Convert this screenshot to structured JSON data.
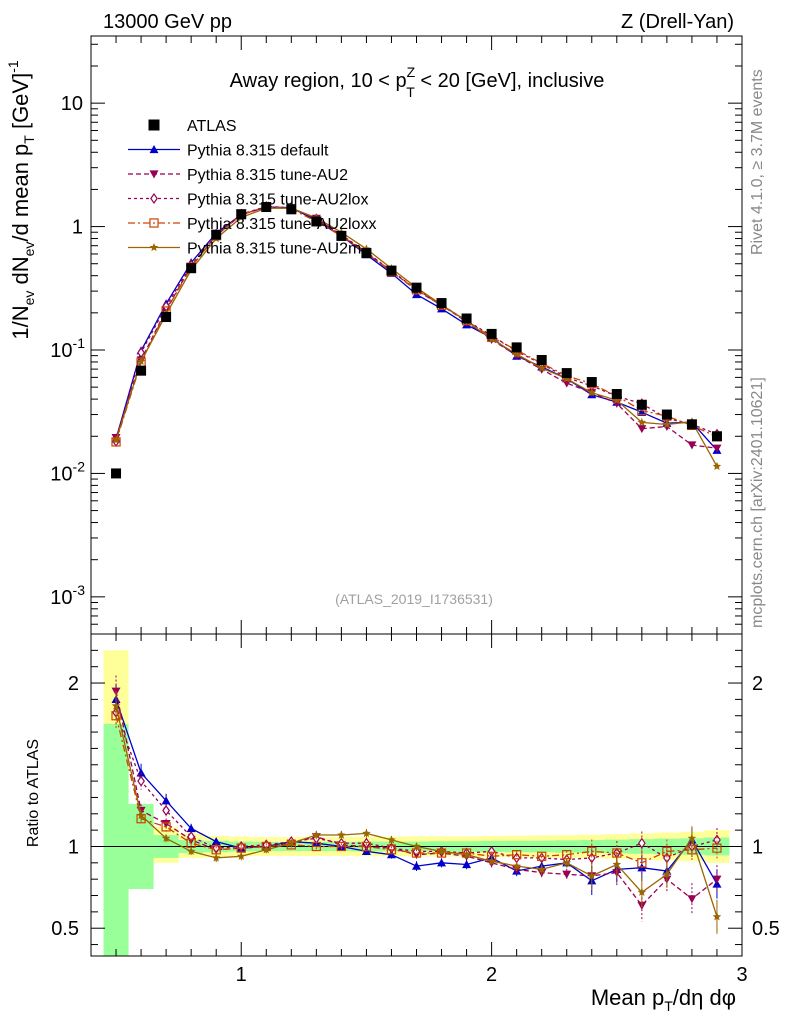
{
  "header": {
    "energy_label": "13000 GeV pp",
    "process_label": "Z (Drell-Yan)"
  },
  "side_labels": {
    "rivet": "Rivet 4.1.0, ≥ 3.7M events",
    "mcplots": "mcplots.cern.ch [arXiv:2401.10621]"
  },
  "chart_data": {
    "type": "line",
    "title_pre": "Away region, 10 < p",
    "title_sup": "Z",
    "title_sub": "T",
    "title_post": " < 20 [GeV], inclusive",
    "watermark": "(ATLAS_2019_I1736531)",
    "ylabel_main": "1/N_ev dN_ev/d mean p_T [GeV]^-1",
    "ylabel_ratio": "Ratio to ATLAS",
    "xlabel": "Mean p_T/dη dφ",
    "xlim": [
      0.4,
      3.0
    ],
    "ylim_main": [
      0.0005,
      35
    ],
    "ylim_ratio": [
      0.33,
      2.3
    ],
    "y_ticks_main": [
      "10^-3",
      "10^-2",
      "10^-1",
      "1",
      "10"
    ],
    "x_ticks": [
      "1",
      "2",
      "3"
    ],
    "ratio_ticks": [
      "0.5",
      "1",
      "2"
    ],
    "x": [
      0.5,
      0.6,
      0.7,
      0.8,
      0.9,
      1.0,
      1.1,
      1.2,
      1.3,
      1.4,
      1.5,
      1.6,
      1.7,
      1.8,
      1.9,
      2.0,
      2.1,
      2.2,
      2.3,
      2.4,
      2.5,
      2.6,
      2.7,
      2.8,
      2.9
    ],
    "data": {
      "name": "ATLAS",
      "values": [
        0.01,
        0.068,
        0.185,
        0.46,
        0.86,
        1.26,
        1.44,
        1.38,
        1.1,
        0.84,
        0.61,
        0.44,
        0.32,
        0.24,
        0.18,
        0.135,
        0.105,
        0.083,
        0.065,
        0.055,
        0.044,
        0.036,
        0.03,
        0.025,
        0.02
      ]
    },
    "ratio_bands": {
      "edges": [
        0.45,
        0.55,
        0.65,
        0.75,
        0.85,
        0.95,
        1.05,
        1.15,
        1.25,
        1.35,
        1.45,
        1.55,
        1.65,
        1.75,
        1.85,
        1.95,
        2.05,
        2.15,
        2.25,
        2.35,
        2.45,
        2.55,
        2.65,
        2.75,
        2.85,
        2.95
      ],
      "green_lo": [
        0.3,
        0.74,
        0.93,
        0.96,
        0.965,
        0.97,
        0.972,
        0.972,
        0.972,
        0.972,
        0.97,
        0.97,
        0.97,
        0.968,
        0.968,
        0.966,
        0.965,
        0.964,
        0.962,
        0.96,
        0.958,
        0.955,
        0.952,
        0.95,
        0.945
      ],
      "green_hi": [
        1.75,
        1.26,
        1.07,
        1.04,
        1.035,
        1.03,
        1.028,
        1.028,
        1.028,
        1.028,
        1.03,
        1.03,
        1.03,
        1.032,
        1.032,
        1.034,
        1.035,
        1.036,
        1.038,
        1.04,
        1.042,
        1.045,
        1.048,
        1.05,
        1.055
      ],
      "yellow_lo": [
        0.3,
        0.82,
        0.9,
        0.93,
        0.935,
        0.94,
        0.942,
        0.942,
        0.942,
        0.942,
        0.94,
        0.94,
        0.94,
        0.938,
        0.938,
        0.936,
        0.934,
        0.932,
        0.93,
        0.928,
        0.925,
        0.92,
        0.915,
        0.91,
        0.9
      ],
      "yellow_hi": [
        2.2,
        1.22,
        1.12,
        1.08,
        1.065,
        1.06,
        1.058,
        1.058,
        1.058,
        1.058,
        1.06,
        1.06,
        1.062,
        1.062,
        1.062,
        1.064,
        1.066,
        1.068,
        1.07,
        1.072,
        1.075,
        1.08,
        1.085,
        1.09,
        1.1
      ]
    },
    "series": [
      {
        "name": "Pythia 8.315 default",
        "color": "#0000cc",
        "dash": "",
        "marker": "triangle-up",
        "ratio": [
          1.9,
          1.45,
          1.28,
          1.11,
          1.03,
          0.99,
          1.0,
          1.03,
          1.02,
          1.0,
          0.97,
          0.95,
          0.88,
          0.9,
          0.89,
          0.93,
          0.85,
          0.88,
          0.9,
          0.79,
          0.86,
          0.87,
          0.85,
          1.04,
          0.77
        ]
      },
      {
        "name": "Pythia 8.315 tune-AU2",
        "color": "#990055",
        "dash": "5,3",
        "marker": "triangle-down",
        "ratio": [
          1.95,
          1.22,
          1.14,
          1.04,
          0.98,
          0.99,
          1.0,
          1.02,
          1.06,
          1.01,
          1.0,
          0.99,
          0.95,
          0.96,
          0.94,
          0.9,
          0.86,
          0.84,
          0.83,
          0.82,
          0.84,
          0.64,
          0.8,
          0.68,
          0.8
        ]
      },
      {
        "name": "Pythia 8.315 tune-AU2lox",
        "color": "#990055",
        "dash": "3,3",
        "marker": "diamond",
        "ratio": [
          1.82,
          1.4,
          1.22,
          1.06,
          0.99,
          1.0,
          1.01,
          1.03,
          1.05,
          1.02,
          1.02,
          0.99,
          0.97,
          0.97,
          0.96,
          0.97,
          0.93,
          0.93,
          0.92,
          0.93,
          0.96,
          1.02,
          0.93,
          1.0,
          1.04
        ]
      },
      {
        "name": "Pythia 8.315 tune-AU2loxx",
        "color": "#cc4400",
        "dash": "7,3,2,3",
        "marker": "square-open",
        "ratio": [
          1.8,
          1.17,
          1.12,
          1.02,
          0.98,
          0.99,
          1.0,
          1.01,
          1.0,
          1.0,
          1.0,
          0.98,
          0.96,
          0.96,
          0.96,
          0.94,
          0.95,
          0.94,
          0.95,
          0.97,
          0.96,
          0.9,
          0.97,
          0.98,
          0.99
        ]
      },
      {
        "name": "Pythia 8.315 tune-AU2m",
        "color": "#996600",
        "dash": "",
        "marker": "star",
        "ratio": [
          1.86,
          1.19,
          1.05,
          0.97,
          0.93,
          0.94,
          0.98,
          1.02,
          1.07,
          1.07,
          1.08,
          1.04,
          1.0,
          0.97,
          0.95,
          0.91,
          0.88,
          0.86,
          0.9,
          0.82,
          0.89,
          0.72,
          0.83,
          1.05,
          0.57
        ]
      }
    ]
  }
}
